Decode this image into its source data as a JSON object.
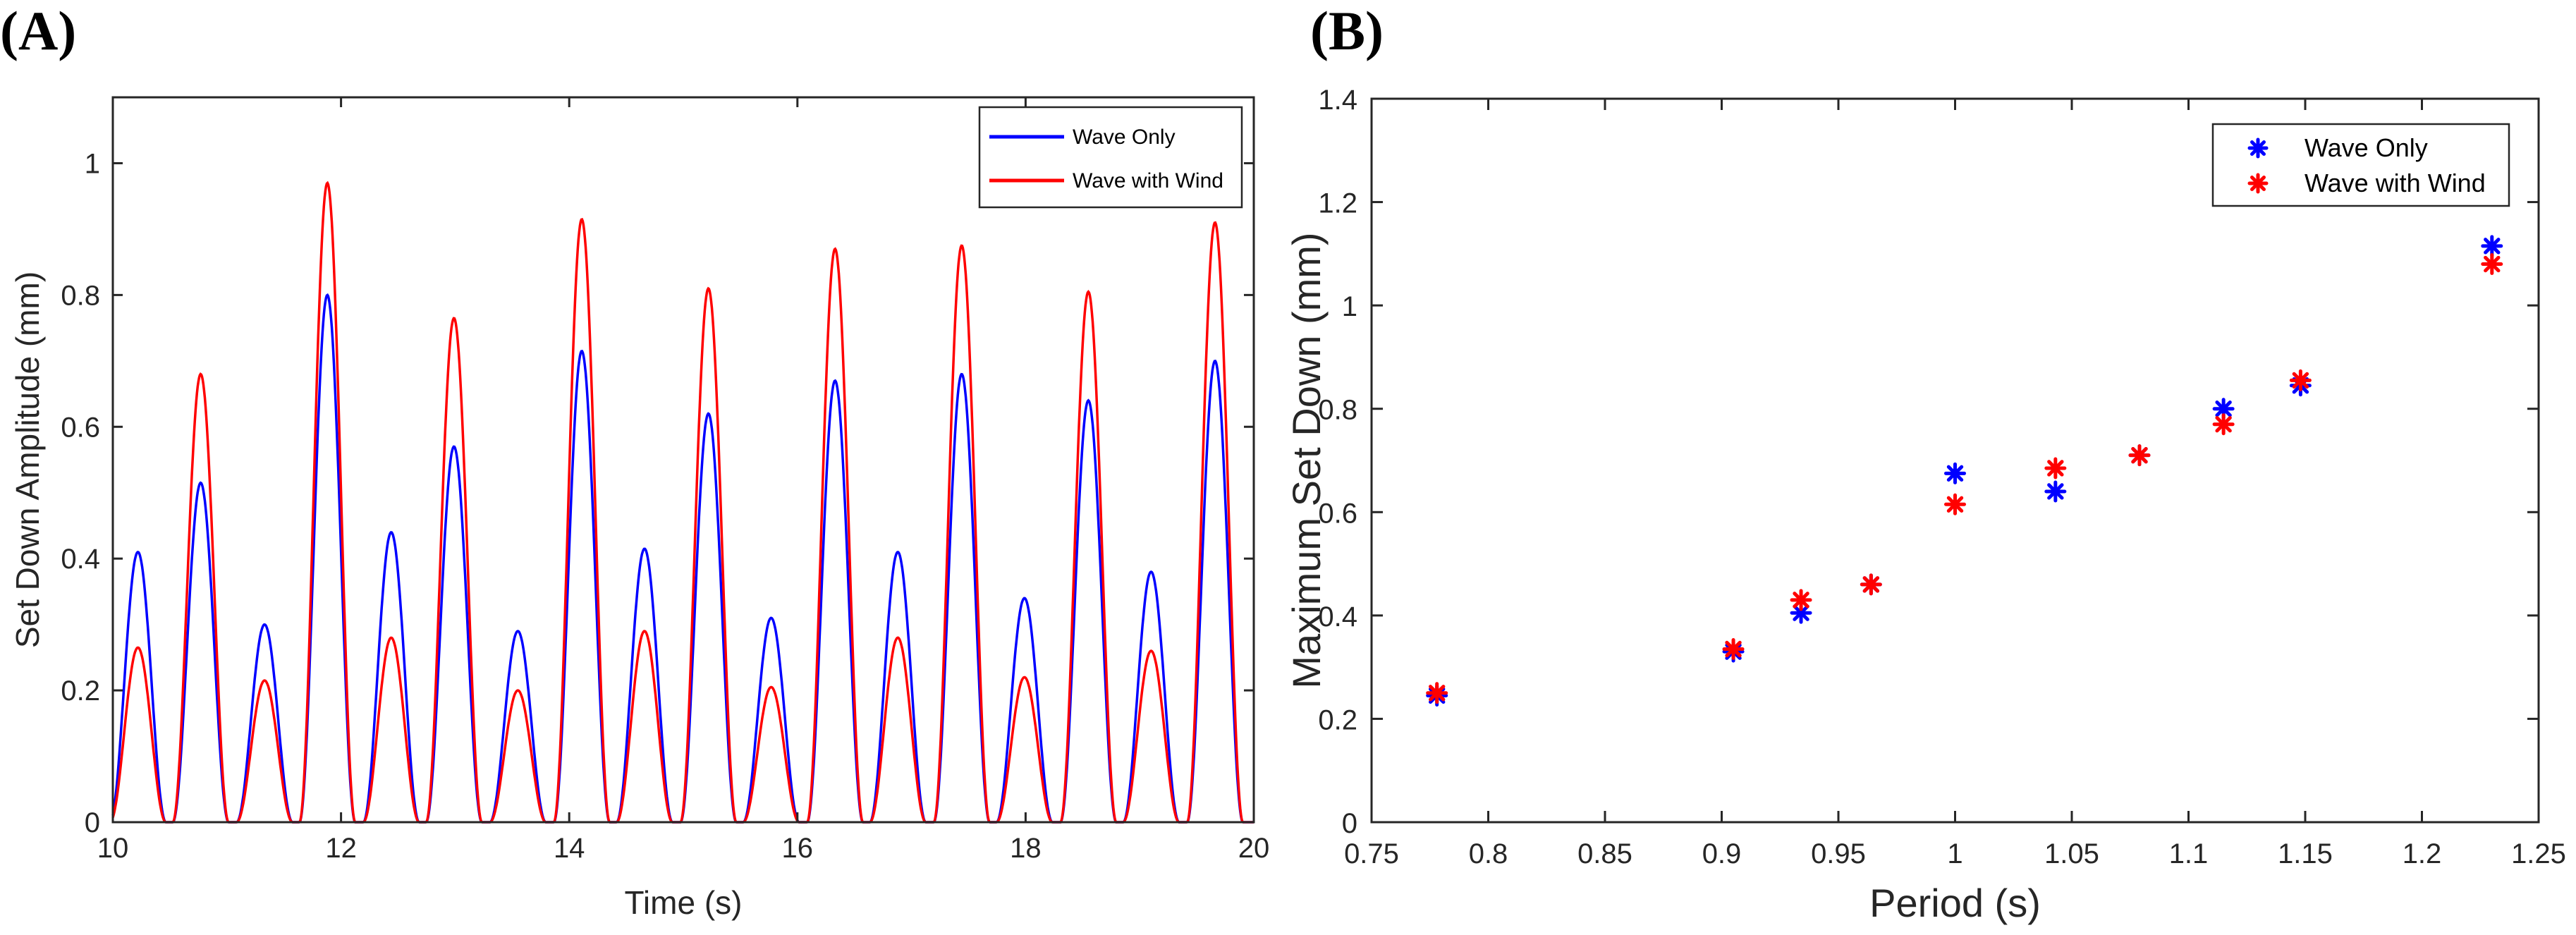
{
  "chart_data": [
    {
      "panel_label": "(A)",
      "type": "line",
      "xlabel": "Time (s)",
      "ylabel": "Set Down Amplitude (mm)",
      "xlim": [
        10,
        20
      ],
      "ylim": [
        0,
        1.1
      ],
      "xticks": [
        10,
        12,
        14,
        16,
        18,
        20
      ],
      "yticks": [
        0,
        0.2,
        0.4,
        0.6,
        0.8,
        1
      ],
      "xtick_labels": [
        "10",
        "12",
        "14",
        "16",
        "18",
        "20"
      ],
      "ytick_labels": [
        "0",
        "0.2",
        "0.4",
        "0.6",
        "0.8",
        "1"
      ],
      "legend_position": "top-right",
      "series": [
        {
          "name": "Wave Only",
          "color": "#0000ff",
          "peaks": [
            {
              "t": 10.22,
              "a": 0.41
            },
            {
              "t": 10.77,
              "a": 0.515
            },
            {
              "t": 11.33,
              "a": 0.3
            },
            {
              "t": 11.88,
              "a": 0.8
            },
            {
              "t": 12.44,
              "a": 0.44
            },
            {
              "t": 12.99,
              "a": 0.57
            },
            {
              "t": 13.55,
              "a": 0.29
            },
            {
              "t": 14.11,
              "a": 0.715
            },
            {
              "t": 14.66,
              "a": 0.415
            },
            {
              "t": 15.22,
              "a": 0.62
            },
            {
              "t": 15.77,
              "a": 0.31
            },
            {
              "t": 16.33,
              "a": 0.67
            },
            {
              "t": 16.88,
              "a": 0.41
            },
            {
              "t": 17.44,
              "a": 0.68
            },
            {
              "t": 17.99,
              "a": 0.34
            },
            {
              "t": 18.55,
              "a": 0.64
            },
            {
              "t": 19.1,
              "a": 0.38
            },
            {
              "t": 19.66,
              "a": 0.7
            }
          ]
        },
        {
          "name": "Wave with Wind",
          "color": "#ff0000",
          "peaks": [
            {
              "t": 10.22,
              "a": 0.265
            },
            {
              "t": 10.77,
              "a": 0.68
            },
            {
              "t": 11.33,
              "a": 0.215
            },
            {
              "t": 11.88,
              "a": 0.97
            },
            {
              "t": 12.44,
              "a": 0.28
            },
            {
              "t": 12.99,
              "a": 0.765
            },
            {
              "t": 13.55,
              "a": 0.2
            },
            {
              "t": 14.11,
              "a": 0.915
            },
            {
              "t": 14.66,
              "a": 0.29
            },
            {
              "t": 15.22,
              "a": 0.81
            },
            {
              "t": 15.77,
              "a": 0.205
            },
            {
              "t": 16.33,
              "a": 0.87
            },
            {
              "t": 16.88,
              "a": 0.28
            },
            {
              "t": 17.44,
              "a": 0.875
            },
            {
              "t": 17.99,
              "a": 0.22
            },
            {
              "t": 18.55,
              "a": 0.805
            },
            {
              "t": 19.1,
              "a": 0.26
            },
            {
              "t": 19.66,
              "a": 0.91
            }
          ]
        }
      ]
    },
    {
      "panel_label": "(B)",
      "type": "scatter",
      "xlabel": "Period (s)",
      "ylabel": "Maximum Set Down (mm)",
      "xlim": [
        0.75,
        1.25
      ],
      "ylim": [
        0,
        1.4
      ],
      "xticks": [
        0.75,
        0.8,
        0.85,
        0.9,
        0.95,
        1,
        1.05,
        1.1,
        1.15,
        1.2,
        1.25
      ],
      "yticks": [
        0,
        0.2,
        0.4,
        0.6,
        0.8,
        1,
        1.2,
        1.4
      ],
      "xtick_labels": [
        "0.75",
        "0.8",
        "0.85",
        "0.9",
        "0.95",
        "1",
        "1.05",
        "1.1",
        "1.15",
        "1.2",
        "1.25"
      ],
      "ytick_labels": [
        "0",
        "0.2",
        "0.4",
        "0.6",
        "0.8",
        "1",
        "1.2",
        "1.4"
      ],
      "legend_position": "top-right",
      "series": [
        {
          "name": "Wave Only",
          "color": "#0000ff",
          "x": [
            0.778,
            0.905,
            0.934,
            0.964,
            1.0,
            1.043,
            1.079,
            1.115,
            1.148,
            1.23
          ],
          "y": [
            0.245,
            0.33,
            0.405,
            0.46,
            0.675,
            0.64,
            0.71,
            0.8,
            0.845,
            1.115
          ]
        },
        {
          "name": "Wave with Wind",
          "color": "#ff0000",
          "x": [
            0.778,
            0.905,
            0.934,
            0.964,
            1.0,
            1.043,
            1.079,
            1.115,
            1.148,
            1.23
          ],
          "y": [
            0.25,
            0.335,
            0.43,
            0.46,
            0.615,
            0.685,
            0.71,
            0.77,
            0.855,
            1.08
          ]
        }
      ]
    }
  ]
}
